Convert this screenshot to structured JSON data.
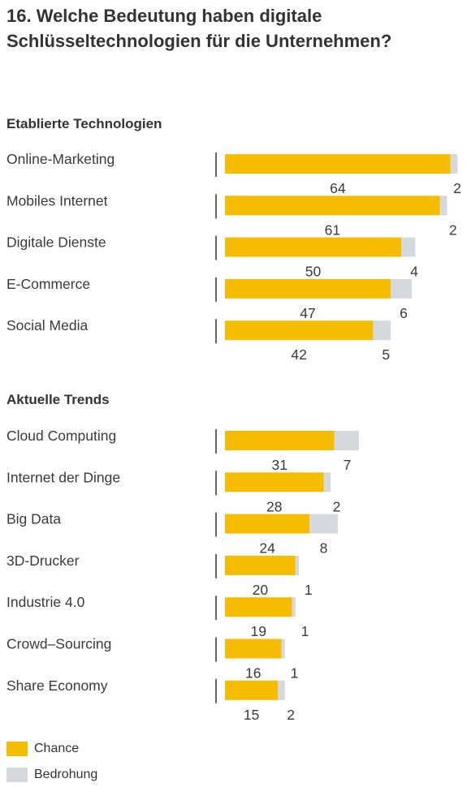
{
  "title": "16. Welche Bedeutung haben digitale Schlüsseltechnologien für die Unternehmen?",
  "colors": {
    "chance": "#f6bd00",
    "threat": "#d5d8dc",
    "axis": "#333333"
  },
  "chart_data": {
    "type": "bar",
    "orientation": "horizontal",
    "stacked": true,
    "value_labels_below_bars": true,
    "series_names": {
      "chance": "Chance",
      "threat": "Bedrohung"
    },
    "groups": [
      {
        "label": "Etablierte Technologien",
        "categories": [
          "Online-Marketing",
          "Mobiles Internet",
          "Digitale Dienste",
          "E-Commerce",
          "Social Media"
        ],
        "chance": [
          64,
          61,
          50,
          47,
          42
        ],
        "threat": [
          2,
          2,
          4,
          6,
          5
        ]
      },
      {
        "label": "Aktuelle Trends",
        "categories": [
          "Cloud Computing",
          "Internet der Dinge",
          "Big Data",
          "3D-Drucker",
          "Industrie 4.0",
          "Crowd–Sourcing",
          "Share Economy"
        ],
        "chance": [
          31,
          28,
          24,
          20,
          19,
          16,
          15
        ],
        "threat": [
          7,
          2,
          8,
          1,
          1,
          1,
          2
        ]
      }
    ],
    "legend": {
      "position": "bottom-left",
      "items": [
        "Chance",
        "Bedrohung"
      ]
    }
  }
}
